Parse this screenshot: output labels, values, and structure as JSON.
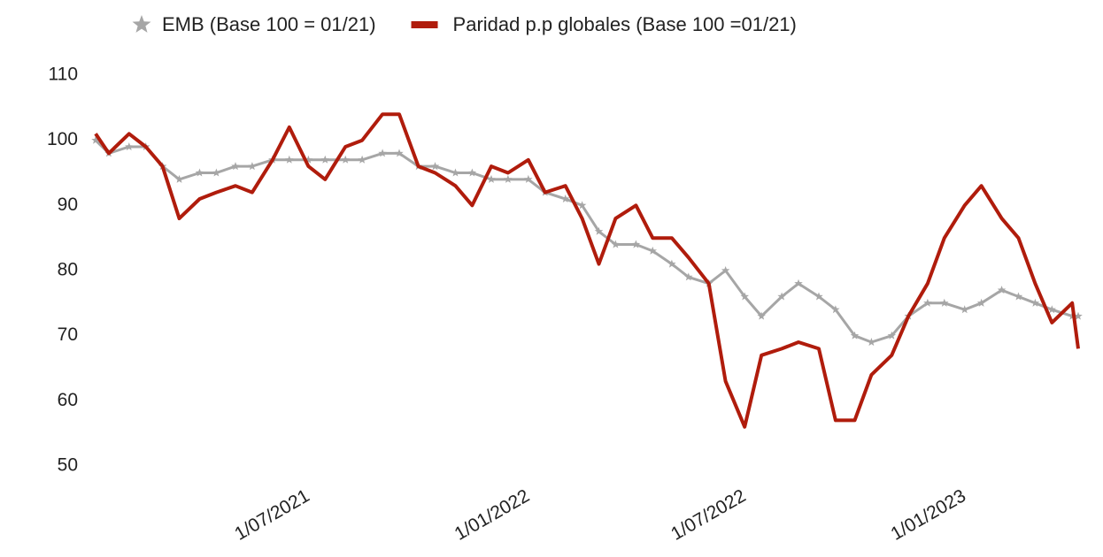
{
  "chart_data": {
    "type": "line",
    "x": [
      "2021-01-04",
      "2021-01-15",
      "2021-02-01",
      "2021-02-15",
      "2021-03-01",
      "2021-03-15",
      "2021-04-01",
      "2021-04-15",
      "2021-05-01",
      "2021-05-15",
      "2021-06-01",
      "2021-06-15",
      "2021-07-01",
      "2021-07-15",
      "2021-08-01",
      "2021-08-15",
      "2021-09-01",
      "2021-09-15",
      "2021-10-01",
      "2021-10-15",
      "2021-11-01",
      "2021-11-15",
      "2021-12-01",
      "2021-12-15",
      "2022-01-01",
      "2022-01-15",
      "2022-02-01",
      "2022-02-15",
      "2022-03-01",
      "2022-03-15",
      "2022-04-01",
      "2022-04-15",
      "2022-05-01",
      "2022-05-15",
      "2022-06-01",
      "2022-06-15",
      "2022-07-01",
      "2022-07-15",
      "2022-08-01",
      "2022-08-15",
      "2022-09-01",
      "2022-09-15",
      "2022-10-01",
      "2022-10-15",
      "2022-11-01",
      "2022-11-15",
      "2022-12-01",
      "2022-12-15",
      "2023-01-01",
      "2023-01-15",
      "2023-02-01",
      "2023-02-15",
      "2023-03-01",
      "2023-03-15",
      "2023-04-01",
      "2023-04-06"
    ],
    "series": [
      {
        "name": "EMB (Base 100 = 01/21)",
        "color": "#a6a6a6",
        "marker": "star",
        "values": [
          100,
          98,
          99,
          99,
          96,
          94,
          95,
          95,
          96,
          96,
          97,
          97,
          97,
          97,
          97,
          97,
          98,
          98,
          96,
          96,
          95,
          95,
          94,
          94,
          94,
          92,
          91,
          90,
          86,
          84,
          84,
          83,
          81,
          79,
          78,
          80,
          76,
          73,
          76,
          78,
          76,
          74,
          70,
          69,
          70,
          73,
          75,
          75,
          74,
          75,
          77,
          76,
          75,
          74,
          73,
          73
        ]
      },
      {
        "name": "Paridad p.p globales (Base 100 =01/21)",
        "color": "#b01c0c",
        "marker": "none",
        "values": [
          101,
          98,
          101,
          99,
          96,
          88,
          91,
          92,
          93,
          92,
          97,
          102,
          96,
          94,
          99,
          100,
          104,
          104,
          96,
          95,
          93,
          90,
          96,
          95,
          97,
          92,
          93,
          88,
          81,
          88,
          90,
          85,
          85,
          82,
          78,
          63,
          56,
          67,
          68,
          69,
          68,
          57,
          57,
          64,
          67,
          73,
          78,
          85,
          90,
          93,
          88,
          85,
          78,
          72,
          75,
          68
        ]
      }
    ],
    "xlim": [
      "2021-01-04",
      "2023-04-06"
    ],
    "xticks": [
      {
        "value": "2021-07-01",
        "label": "1/07/2021"
      },
      {
        "value": "2022-01-01",
        "label": "1/01/2022"
      },
      {
        "value": "2022-07-01",
        "label": "1/07/2022"
      },
      {
        "value": "2023-01-01",
        "label": "1/01/2023"
      }
    ],
    "ylim": [
      50,
      110
    ],
    "yticks": [
      50,
      60,
      70,
      80,
      90,
      100,
      110
    ],
    "grid": false,
    "legend": "top"
  }
}
